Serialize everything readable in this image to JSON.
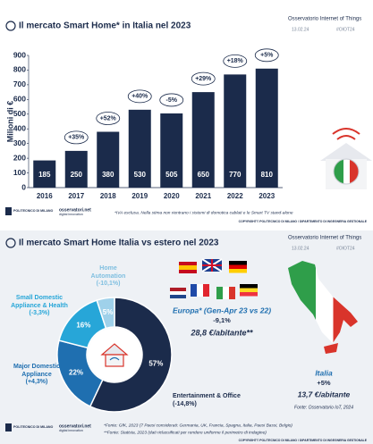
{
  "header": {
    "organization": "Osservatorio Internet of Things",
    "date": "13.02.24",
    "hashtag": "#OIOT24"
  },
  "logos": {
    "university": "POLITECNICO DI MILANO",
    "brand": "osservatori.net",
    "tagline": "digital innovation"
  },
  "copyright": "COPYRIGHT© POLITECNICO DI MILANO / DIPARTIMENTO DI INGEGNERIA GESTIONALE",
  "chart_data": [
    {
      "type": "bar",
      "title": "Il mercato Smart Home* in Italia nel 2023",
      "ylabel": "Milioni di €",
      "categories": [
        "2016",
        "2017",
        "2018",
        "2019",
        "2020",
        "2021",
        "2022",
        "2023"
      ],
      "values": [
        185,
        250,
        380,
        530,
        505,
        650,
        770,
        810
      ],
      "growth_labels": [
        null,
        "+35%",
        "+52%",
        "+40%",
        "-5%",
        "+29%",
        "+18%",
        "+5%"
      ],
      "color": "#1b2b4b",
      "ylim": [
        0,
        900
      ],
      "yticks": [
        0,
        100,
        200,
        300,
        400,
        500,
        600,
        700,
        800,
        900
      ],
      "grid": false,
      "footnote": "*IVA esclusa. Nella stima non rientrano i sistemi di domotica cablati e le Smart TV stand-alone"
    },
    {
      "type": "pie",
      "title": "Il mercato Smart Home Italia vs estero nel 2023",
      "categories": [
        "Entertainment & Office",
        "Major Domestic Appliance",
        "Small Domestic Appliance & Health",
        "Home Automation"
      ],
      "values": [
        57,
        22,
        16,
        5
      ],
      "value_labels": [
        "57%",
        "22%",
        "16%",
        "5%"
      ],
      "changes": [
        "(-14,8%)",
        "(+4,3%)",
        "(-3,3%)",
        "(-10,1%)"
      ],
      "colors": [
        "#1b2b4b",
        "#1f6fb0",
        "#27a6d8",
        "#9fd1ea"
      ],
      "europe": {
        "label": "Europa* (Gen-Apr 23 vs 22)",
        "change": "-9,1%",
        "per_capita": "28,8 €/abitante**"
      },
      "italy": {
        "label": "Italia",
        "change": "+5%",
        "per_capita": "13,7 €/abitante"
      },
      "source": "Fonte: Osservatorio IoT, 2024",
      "footnotes": [
        "*Fonte: GfK, 2023 (7 Paesi considerati: Germania, UK, Francia, Spagna, Italia, Paesi Bassi, Belgio)",
        "**Fonte: Statista, 2023 (dati riclassificati per rendere uniforme il perimetro di indagine)"
      ]
    }
  ]
}
